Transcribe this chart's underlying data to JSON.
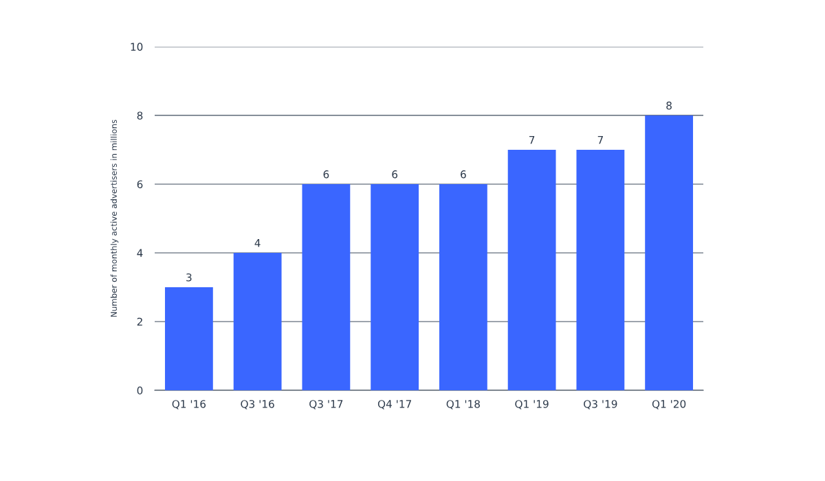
{
  "chart_data": {
    "type": "bar",
    "ylabel": "Number of monthly active advertisers in millions",
    "categories": [
      "Q1 '16",
      "Q3 '16",
      "Q3 '17",
      "Q4 '17",
      "Q1 '18",
      "Q1 '19",
      "Q3 '19",
      "Q1 '20"
    ],
    "values": [
      3,
      4,
      6,
      6,
      6,
      7,
      7,
      8
    ],
    "color": "#3a66ff",
    "ylim": [
      0,
      10
    ],
    "yticks": [
      0,
      2,
      4,
      6,
      8,
      10
    ],
    "grid": "y",
    "data_labels": true
  }
}
